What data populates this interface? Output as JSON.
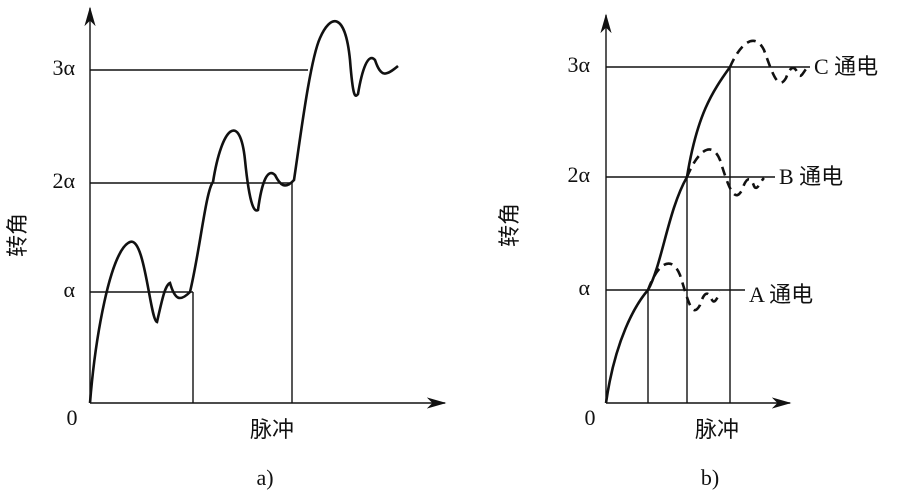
{
  "panel_a": {
    "y_labels": [
      "3α",
      "2α",
      "α"
    ],
    "origin": "0",
    "y_axis_label": "转角",
    "x_axis_label": "脉冲",
    "caption": "a)"
  },
  "panel_b": {
    "y_labels": [
      "3α",
      "2α",
      "α"
    ],
    "origin": "0",
    "y_axis_label": "转角",
    "x_axis_label": "脉冲",
    "caption": "b)",
    "curve_labels": [
      "C 通电",
      "B 通电",
      "A 通电"
    ]
  }
}
